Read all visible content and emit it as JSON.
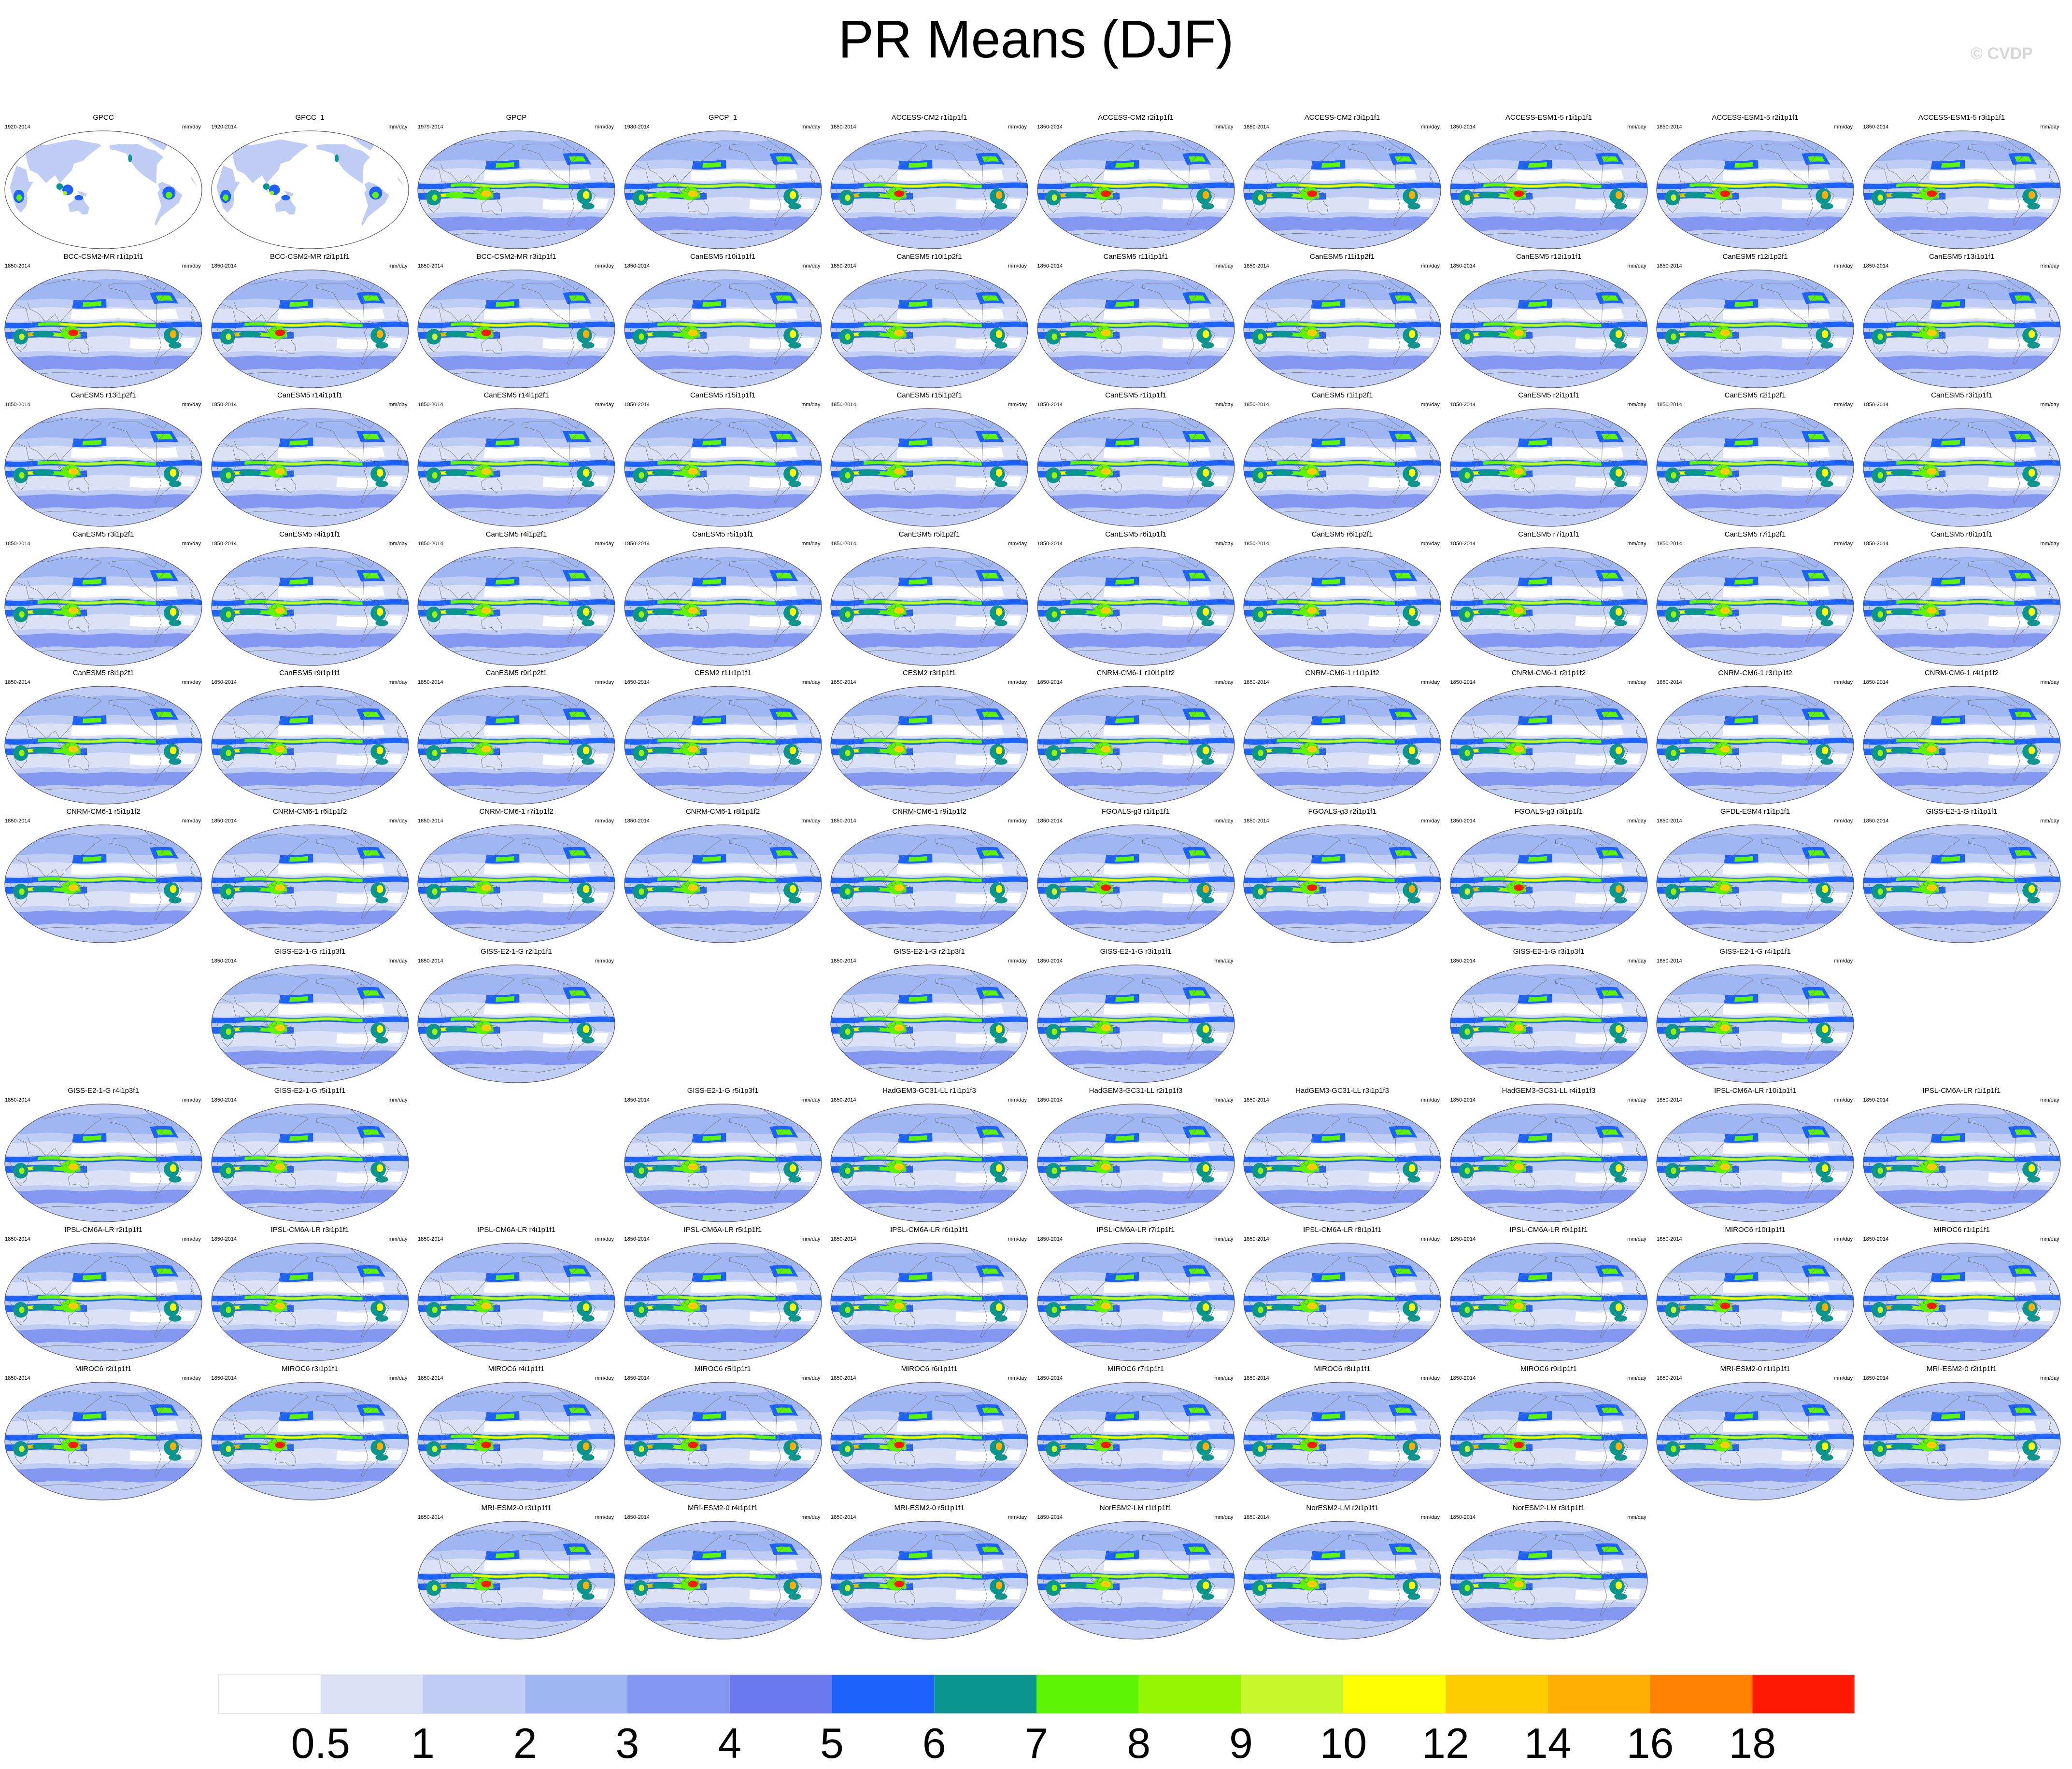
{
  "figure": {
    "title": "PR Means (DJF)",
    "watermark": "© CVDP"
  },
  "chart_data": {
    "type": "heatmap",
    "title": "PR Means (DJF)",
    "units": "mm/day",
    "projection": "robinson",
    "grid_columns": 10,
    "colorbar": {
      "levels": [
        "0.5",
        "1",
        "2",
        "3",
        "4",
        "5",
        "6",
        "7",
        "8",
        "9",
        "10",
        "12",
        "14",
        "16",
        "18"
      ],
      "colors": [
        "#ffffff",
        "#dbe2f7",
        "#bfcdf5",
        "#a0b6f3",
        "#8498f1",
        "#6b78ee",
        "#1c62fb",
        "#0a968e",
        "#5ef505",
        "#96f705",
        "#c7f72d",
        "#fffe03",
        "#ffcc02",
        "#ffae02",
        "#ff8102",
        "#ff1902"
      ]
    },
    "panels": [
      {
        "row": 0,
        "col": 0,
        "name": "GPCC",
        "years": "1920-2014",
        "units": "mm/day",
        "style": "obs_land"
      },
      {
        "row": 0,
        "col": 1,
        "name": "GPCC_1",
        "years": "1920-2014",
        "units": "mm/day",
        "style": "obs_land"
      },
      {
        "row": 0,
        "col": 2,
        "name": "GPCP",
        "years": "1979-2014",
        "units": "mm/day",
        "style": "obs"
      },
      {
        "row": 0,
        "col": 3,
        "name": "GPCP_1",
        "years": "1980-2014",
        "units": "mm/day",
        "style": "obs"
      },
      {
        "row": 0,
        "col": 4,
        "name": "ACCESS-CM2 r1i1p1f1",
        "years": "1850-2014",
        "units": "mm/day",
        "style": "wet"
      },
      {
        "row": 0,
        "col": 5,
        "name": "ACCESS-CM2 r2i1p1f1",
        "years": "1850-2014",
        "units": "mm/day",
        "style": "wet"
      },
      {
        "row": 0,
        "col": 6,
        "name": "ACCESS-CM2 r3i1p1f1",
        "years": "1850-2014",
        "units": "mm/day",
        "style": "wet"
      },
      {
        "row": 0,
        "col": 7,
        "name": "ACCESS-ESM1-5 r1i1p1f1",
        "years": "1850-2014",
        "units": "mm/day",
        "style": "wet"
      },
      {
        "row": 0,
        "col": 8,
        "name": "ACCESS-ESM1-5 r2i1p1f1",
        "years": "1850-2014",
        "units": "mm/day",
        "style": "wet"
      },
      {
        "row": 0,
        "col": 9,
        "name": "ACCESS-ESM1-5 r3i1p1f1",
        "years": "1850-2014",
        "units": "mm/day",
        "style": "wet"
      },
      {
        "row": 1,
        "col": 0,
        "name": "BCC-CSM2-MR r1i1p1f1",
        "years": "1850-2014",
        "units": "mm/day",
        "style": "wet"
      },
      {
        "row": 1,
        "col": 1,
        "name": "BCC-CSM2-MR r2i1p1f1",
        "years": "1850-2014",
        "units": "mm/day",
        "style": "wet"
      },
      {
        "row": 1,
        "col": 2,
        "name": "BCC-CSM2-MR r3i1p1f1",
        "years": "1850-2014",
        "units": "mm/day",
        "style": "wet"
      },
      {
        "row": 1,
        "col": 3,
        "name": "CanESM5 r10i1p1f1",
        "years": "1850-2014",
        "units": "mm/day",
        "style": "model"
      },
      {
        "row": 1,
        "col": 4,
        "name": "CanESM5 r10i1p2f1",
        "years": "1850-2014",
        "units": "mm/day",
        "style": "model"
      },
      {
        "row": 1,
        "col": 5,
        "name": "CanESM5 r11i1p1f1",
        "years": "1850-2014",
        "units": "mm/day",
        "style": "model"
      },
      {
        "row": 1,
        "col": 6,
        "name": "CanESM5 r11i1p2f1",
        "years": "1850-2014",
        "units": "mm/day",
        "style": "model"
      },
      {
        "row": 1,
        "col": 7,
        "name": "CanESM5 r12i1p1f1",
        "years": "1850-2014",
        "units": "mm/day",
        "style": "model"
      },
      {
        "row": 1,
        "col": 8,
        "name": "CanESM5 r12i1p2f1",
        "years": "1850-2014",
        "units": "mm/day",
        "style": "model"
      },
      {
        "row": 1,
        "col": 9,
        "name": "CanESM5 r13i1p1f1",
        "years": "1850-2014",
        "units": "mm/day",
        "style": "model"
      },
      {
        "row": 2,
        "col": 0,
        "name": "CanESM5 r13i1p2f1",
        "years": "1850-2014",
        "units": "mm/day",
        "style": "model"
      },
      {
        "row": 2,
        "col": 1,
        "name": "CanESM5 r14i1p1f1",
        "years": "1850-2014",
        "units": "mm/day",
        "style": "model"
      },
      {
        "row": 2,
        "col": 2,
        "name": "CanESM5 r14i1p2f1",
        "years": "1850-2014",
        "units": "mm/day",
        "style": "model"
      },
      {
        "row": 2,
        "col": 3,
        "name": "CanESM5 r15i1p1f1",
        "years": "1850-2014",
        "units": "mm/day",
        "style": "model"
      },
      {
        "row": 2,
        "col": 4,
        "name": "CanESM5 r15i1p2f1",
        "years": "1850-2014",
        "units": "mm/day",
        "style": "model"
      },
      {
        "row": 2,
        "col": 5,
        "name": "CanESM5 r1i1p1f1",
        "years": "1850-2014",
        "units": "mm/day",
        "style": "model"
      },
      {
        "row": 2,
        "col": 6,
        "name": "CanESM5 r1i1p2f1",
        "years": "1850-2014",
        "units": "mm/day",
        "style": "model"
      },
      {
        "row": 2,
        "col": 7,
        "name": "CanESM5 r2i1p1f1",
        "years": "1850-2014",
        "units": "mm/day",
        "style": "model"
      },
      {
        "row": 2,
        "col": 8,
        "name": "CanESM5 r2i1p2f1",
        "years": "1850-2014",
        "units": "mm/day",
        "style": "model"
      },
      {
        "row": 2,
        "col": 9,
        "name": "CanESM5 r3i1p1f1",
        "years": "1850-2014",
        "units": "mm/day",
        "style": "model"
      },
      {
        "row": 3,
        "col": 0,
        "name": "CanESM5 r3i1p2f1",
        "years": "1850-2014",
        "units": "mm/day",
        "style": "model"
      },
      {
        "row": 3,
        "col": 1,
        "name": "CanESM5 r4i1p1f1",
        "years": "1850-2014",
        "units": "mm/day",
        "style": "model"
      },
      {
        "row": 3,
        "col": 2,
        "name": "CanESM5 r4i1p2f1",
        "years": "1850-2014",
        "units": "mm/day",
        "style": "model"
      },
      {
        "row": 3,
        "col": 3,
        "name": "CanESM5 r5i1p1f1",
        "years": "1850-2014",
        "units": "mm/day",
        "style": "model"
      },
      {
        "row": 3,
        "col": 4,
        "name": "CanESM5 r5i1p2f1",
        "years": "1850-2014",
        "units": "mm/day",
        "style": "model"
      },
      {
        "row": 3,
        "col": 5,
        "name": "CanESM5 r6i1p1f1",
        "years": "1850-2014",
        "units": "mm/day",
        "style": "model"
      },
      {
        "row": 3,
        "col": 6,
        "name": "CanESM5 r6i1p2f1",
        "years": "1850-2014",
        "units": "mm/day",
        "style": "model"
      },
      {
        "row": 3,
        "col": 7,
        "name": "CanESM5 r7i1p1f1",
        "years": "1850-2014",
        "units": "mm/day",
        "style": "model"
      },
      {
        "row": 3,
        "col": 8,
        "name": "CanESM5 r7i1p2f1",
        "years": "1850-2014",
        "units": "mm/day",
        "style": "model"
      },
      {
        "row": 3,
        "col": 9,
        "name": "CanESM5 r8i1p1f1",
        "years": "1850-2014",
        "units": "mm/day",
        "style": "model"
      },
      {
        "row": 4,
        "col": 0,
        "name": "CanESM5 r8i1p2f1",
        "years": "1850-2014",
        "units": "mm/day",
        "style": "model"
      },
      {
        "row": 4,
        "col": 1,
        "name": "CanESM5 r9i1p1f1",
        "years": "1850-2014",
        "units": "mm/day",
        "style": "model"
      },
      {
        "row": 4,
        "col": 2,
        "name": "CanESM5 r9i1p2f1",
        "years": "1850-2014",
        "units": "mm/day",
        "style": "model"
      },
      {
        "row": 4,
        "col": 3,
        "name": "CESM2 r11i1p1f1",
        "years": "1850-2014",
        "units": "mm/day",
        "style": "model"
      },
      {
        "row": 4,
        "col": 4,
        "name": "CESM2 r3i1p1f1",
        "years": "1850-2014",
        "units": "mm/day",
        "style": "model"
      },
      {
        "row": 4,
        "col": 5,
        "name": "CNRM-CM6-1 r10i1p1f2",
        "years": "1850-2014",
        "units": "mm/day",
        "style": "model"
      },
      {
        "row": 4,
        "col": 6,
        "name": "CNRM-CM6-1 r1i1p1f2",
        "years": "1850-2014",
        "units": "mm/day",
        "style": "model"
      },
      {
        "row": 4,
        "col": 7,
        "name": "CNRM-CM6-1 r2i1p1f2",
        "years": "1850-2014",
        "units": "mm/day",
        "style": "model"
      },
      {
        "row": 4,
        "col": 8,
        "name": "CNRM-CM6-1 r3i1p1f2",
        "years": "1850-2014",
        "units": "mm/day",
        "style": "model"
      },
      {
        "row": 4,
        "col": 9,
        "name": "CNRM-CM6-1 r4i1p1f2",
        "years": "1850-2014",
        "units": "mm/day",
        "style": "model"
      },
      {
        "row": 5,
        "col": 0,
        "name": "CNRM-CM6-1 r5i1p1f2",
        "years": "1850-2014",
        "units": "mm/day",
        "style": "model"
      },
      {
        "row": 5,
        "col": 1,
        "name": "CNRM-CM6-1 r6i1p1f2",
        "years": "1850-2014",
        "units": "mm/day",
        "style": "model"
      },
      {
        "row": 5,
        "col": 2,
        "name": "CNRM-CM6-1 r7i1p1f2",
        "years": "1850-2014",
        "units": "mm/day",
        "style": "model"
      },
      {
        "row": 5,
        "col": 3,
        "name": "CNRM-CM6-1 r8i1p1f2",
        "years": "1850-2014",
        "units": "mm/day",
        "style": "model"
      },
      {
        "row": 5,
        "col": 4,
        "name": "CNRM-CM6-1 r9i1p1f2",
        "years": "1850-2014",
        "units": "mm/day",
        "style": "model"
      },
      {
        "row": 5,
        "col": 5,
        "name": "FGOALS-g3 r1i1p1f1",
        "years": "1850-2014",
        "units": "mm/day",
        "style": "wet"
      },
      {
        "row": 5,
        "col": 6,
        "name": "FGOALS-g3 r2i1p1f1",
        "years": "1850-2014",
        "units": "mm/day",
        "style": "wet"
      },
      {
        "row": 5,
        "col": 7,
        "name": "FGOALS-g3 r3i1p1f1",
        "years": "1850-2014",
        "units": "mm/day",
        "style": "wet"
      },
      {
        "row": 5,
        "col": 8,
        "name": "GFDL-ESM4 r1i1p1f1",
        "years": "1850-2014",
        "units": "mm/day",
        "style": "model"
      },
      {
        "row": 5,
        "col": 9,
        "name": "GISS-E2-1-G r1i1p1f1",
        "years": "1850-2014",
        "units": "mm/day",
        "style": "model"
      },
      {
        "row": 6,
        "col": 1,
        "name": "GISS-E2-1-G r1i1p3f1",
        "years": "1850-2014",
        "units": "mm/day",
        "style": "model"
      },
      {
        "row": 6,
        "col": 2,
        "name": "GISS-E2-1-G r2i1p1f1",
        "years": "1850-2014",
        "units": "mm/day",
        "style": "model"
      },
      {
        "row": 6,
        "col": 4,
        "name": "GISS-E2-1-G r2i1p3f1",
        "years": "1850-2014",
        "units": "mm/day",
        "style": "model"
      },
      {
        "row": 6,
        "col": 5,
        "name": "GISS-E2-1-G r3i1p1f1",
        "years": "1850-2014",
        "units": "mm/day",
        "style": "model"
      },
      {
        "row": 6,
        "col": 7,
        "name": "GISS-E2-1-G r3i1p3f1",
        "years": "1850-2014",
        "units": "mm/day",
        "style": "model"
      },
      {
        "row": 6,
        "col": 8,
        "name": "GISS-E2-1-G r4i1p1f1",
        "years": "1850-2014",
        "units": "mm/day",
        "style": "model"
      },
      {
        "row": 7,
        "col": 0,
        "name": "GISS-E2-1-G r4i1p3f1",
        "years": "1850-2014",
        "units": "mm/day",
        "style": "model"
      },
      {
        "row": 7,
        "col": 1,
        "name": "GISS-E2-1-G r5i1p1f1",
        "years": "1850-2014",
        "units": "mm/day",
        "style": "model"
      },
      {
        "row": 7,
        "col": 3,
        "name": "GISS-E2-1-G r5i1p3f1",
        "years": "1850-2014",
        "units": "mm/day",
        "style": "model"
      },
      {
        "row": 7,
        "col": 4,
        "name": "HadGEM3-GC31-LL r1i1p1f3",
        "years": "1850-2014",
        "units": "mm/day",
        "style": "model"
      },
      {
        "row": 7,
        "col": 5,
        "name": "HadGEM3-GC31-LL r2i1p1f3",
        "years": "1850-2014",
        "units": "mm/day",
        "style": "model"
      },
      {
        "row": 7,
        "col": 6,
        "name": "HadGEM3-GC31-LL r3i1p1f3",
        "years": "1850-2014",
        "units": "mm/day",
        "style": "model"
      },
      {
        "row": 7,
        "col": 7,
        "name": "HadGEM3-GC31-LL r4i1p1f3",
        "years": "1850-2014",
        "units": "mm/day",
        "style": "model"
      },
      {
        "row": 7,
        "col": 8,
        "name": "IPSL-CM6A-LR r10i1p1f1",
        "years": "1850-2014",
        "units": "mm/day",
        "style": "model"
      },
      {
        "row": 7,
        "col": 9,
        "name": "IPSL-CM6A-LR r1i1p1f1",
        "years": "1850-2014",
        "units": "mm/day",
        "style": "model"
      },
      {
        "row": 8,
        "col": 0,
        "name": "IPSL-CM6A-LR r2i1p1f1",
        "years": "1850-2014",
        "units": "mm/day",
        "style": "model"
      },
      {
        "row": 8,
        "col": 1,
        "name": "IPSL-CM6A-LR r3i1p1f1",
        "years": "1850-2014",
        "units": "mm/day",
        "style": "model"
      },
      {
        "row": 8,
        "col": 2,
        "name": "IPSL-CM6A-LR r4i1p1f1",
        "years": "1850-2014",
        "units": "mm/day",
        "style": "model"
      },
      {
        "row": 8,
        "col": 3,
        "name": "IPSL-CM6A-LR r5i1p1f1",
        "years": "1850-2014",
        "units": "mm/day",
        "style": "model"
      },
      {
        "row": 8,
        "col": 4,
        "name": "IPSL-CM6A-LR r6i1p1f1",
        "years": "1850-2014",
        "units": "mm/day",
        "style": "model"
      },
      {
        "row": 8,
        "col": 5,
        "name": "IPSL-CM6A-LR r7i1p1f1",
        "years": "1850-2014",
        "units": "mm/day",
        "style": "model"
      },
      {
        "row": 8,
        "col": 6,
        "name": "IPSL-CM6A-LR r8i1p1f1",
        "years": "1850-2014",
        "units": "mm/day",
        "style": "model"
      },
      {
        "row": 8,
        "col": 7,
        "name": "IPSL-CM6A-LR r9i1p1f1",
        "years": "1850-2014",
        "units": "mm/day",
        "style": "model"
      },
      {
        "row": 8,
        "col": 8,
        "name": "MIROC6 r10i1p1f1",
        "years": "1850-2014",
        "units": "mm/day",
        "style": "wet"
      },
      {
        "row": 8,
        "col": 9,
        "name": "MIROC6 r1i1p1f1",
        "years": "1850-2014",
        "units": "mm/day",
        "style": "wet"
      },
      {
        "row": 9,
        "col": 0,
        "name": "MIROC6 r2i1p1f1",
        "years": "1850-2014",
        "units": "mm/day",
        "style": "wet"
      },
      {
        "row": 9,
        "col": 1,
        "name": "MIROC6 r3i1p1f1",
        "years": "1850-2014",
        "units": "mm/day",
        "style": "wet"
      },
      {
        "row": 9,
        "col": 2,
        "name": "MIROC6 r4i1p1f1",
        "years": "1850-2014",
        "units": "mm/day",
        "style": "wet"
      },
      {
        "row": 9,
        "col": 3,
        "name": "MIROC6 r5i1p1f1",
        "years": "1850-2014",
        "units": "mm/day",
        "style": "wet"
      },
      {
        "row": 9,
        "col": 4,
        "name": "MIROC6 r6i1p1f1",
        "years": "1850-2014",
        "units": "mm/day",
        "style": "wet"
      },
      {
        "row": 9,
        "col": 5,
        "name": "MIROC6 r7i1p1f1",
        "years": "1850-2014",
        "units": "mm/day",
        "style": "wet"
      },
      {
        "row": 9,
        "col": 6,
        "name": "MIROC6 r8i1p1f1",
        "years": "1850-2014",
        "units": "mm/day",
        "style": "wet"
      },
      {
        "row": 9,
        "col": 7,
        "name": "MIROC6 r9i1p1f1",
        "years": "1850-2014",
        "units": "mm/day",
        "style": "wet"
      },
      {
        "row": 9,
        "col": 8,
        "name": "MRI-ESM2-0 r1i1p1f1",
        "years": "1850-2014",
        "units": "mm/day",
        "style": "model"
      },
      {
        "row": 9,
        "col": 9,
        "name": "MRI-ESM2-0 r2i1p1f1",
        "years": "1850-2014",
        "units": "mm/day",
        "style": "model"
      },
      {
        "row": 10,
        "col": 2,
        "name": "MRI-ESM2-0 r3i1p1f1",
        "years": "1850-2014",
        "units": "mm/day",
        "style": "wet"
      },
      {
        "row": 10,
        "col": 3,
        "name": "MRI-ESM2-0 r4i1p1f1",
        "years": "1850-2014",
        "units": "mm/day",
        "style": "wet"
      },
      {
        "row": 10,
        "col": 4,
        "name": "MRI-ESM2-0 r5i1p1f1",
        "years": "1850-2014",
        "units": "mm/day",
        "style": "wet"
      },
      {
        "row": 10,
        "col": 5,
        "name": "NorESM2-LM r1i1p1f1",
        "years": "1850-2014",
        "units": "mm/day",
        "style": "model"
      },
      {
        "row": 10,
        "col": 6,
        "name": "NorESM2-LM r2i1p1f1",
        "years": "1850-2014",
        "units": "mm/day",
        "style": "model"
      },
      {
        "row": 10,
        "col": 7,
        "name": "NorESM2-LM r3i1p1f1",
        "years": "1850-2014",
        "units": "mm/day",
        "style": "model"
      }
    ]
  }
}
